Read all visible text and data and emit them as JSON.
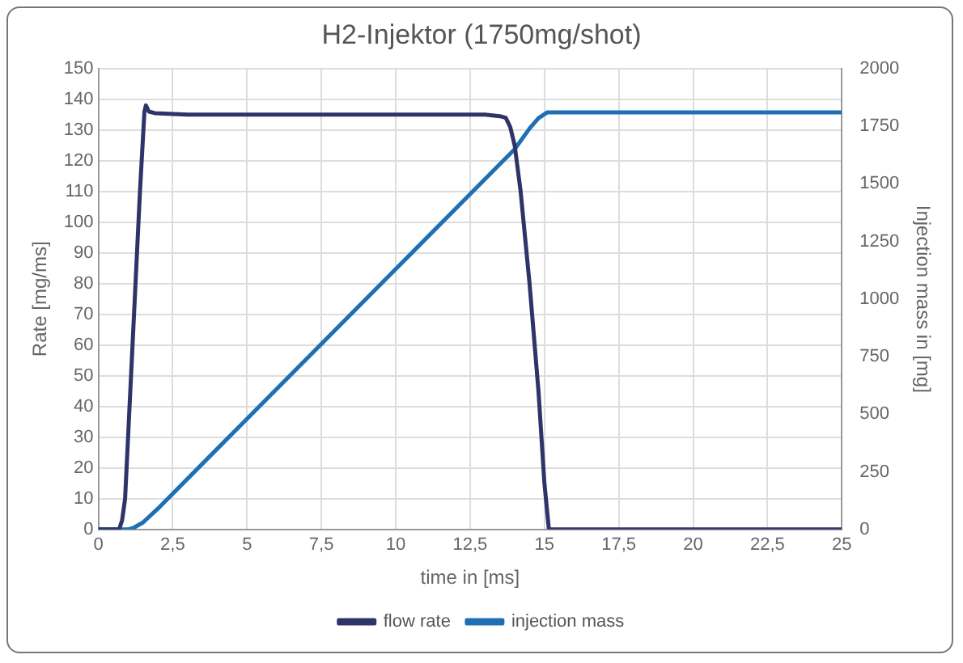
{
  "chart_data": {
    "type": "line",
    "title": "H2-Injektor (1750mg/shot)",
    "xlabel": "time in [ms]",
    "ylabel": "Rate [mg/ms]",
    "y2label": "Injection mass in [mg]",
    "xlim": [
      0,
      25
    ],
    "xticks": [
      0,
      {
        "value": 2.5,
        "label": "2,5"
      },
      5,
      {
        "value": 7.5,
        "label": "7,5"
      },
      10,
      {
        "value": 12.5,
        "label": "12,5"
      },
      15,
      {
        "value": 17.5,
        "label": "17,5"
      },
      20,
      {
        "value": 22.5,
        "label": "22,5"
      },
      25
    ],
    "ylim": [
      0,
      150
    ],
    "yticks": [
      0,
      10,
      20,
      30,
      40,
      50,
      60,
      70,
      80,
      90,
      100,
      110,
      120,
      130,
      140,
      150
    ],
    "y2lim": [
      0,
      2000
    ],
    "y2ticks": [
      0,
      250,
      500,
      750,
      1000,
      1250,
      1500,
      1750,
      2000
    ],
    "grid": true,
    "legend": "bottom",
    "marker": "none",
    "series": [
      {
        "name": "flow rate",
        "color": "#2e3468",
        "x": [
          0,
          0.7,
          0.8,
          0.9,
          1.0,
          1.2,
          1.4,
          1.55,
          1.6,
          1.7,
          1.9,
          3,
          6,
          10,
          13,
          13.5,
          13.7,
          13.85,
          14,
          14.2,
          14.5,
          14.8,
          15,
          15.15,
          15.3,
          25
        ],
        "values": [
          0,
          0,
          3,
          10,
          30,
          70,
          110,
          136,
          138,
          136,
          135.5,
          135,
          135,
          135,
          135,
          134.5,
          134,
          131,
          125,
          110,
          80,
          45,
          15,
          0,
          0,
          0
        ]
      },
      {
        "name": "injection mass",
        "color": "#1f6fb5",
        "axis": "y2",
        "x": [
          0,
          1.0,
          1.2,
          1.5,
          2,
          5,
          10,
          14,
          14.5,
          14.8,
          15.1,
          15.5,
          25
        ],
        "values": [
          0,
          0,
          8,
          30,
          90,
          480,
          1130,
          1650,
          1740,
          1785,
          1810,
          1810,
          1810
        ]
      }
    ]
  }
}
